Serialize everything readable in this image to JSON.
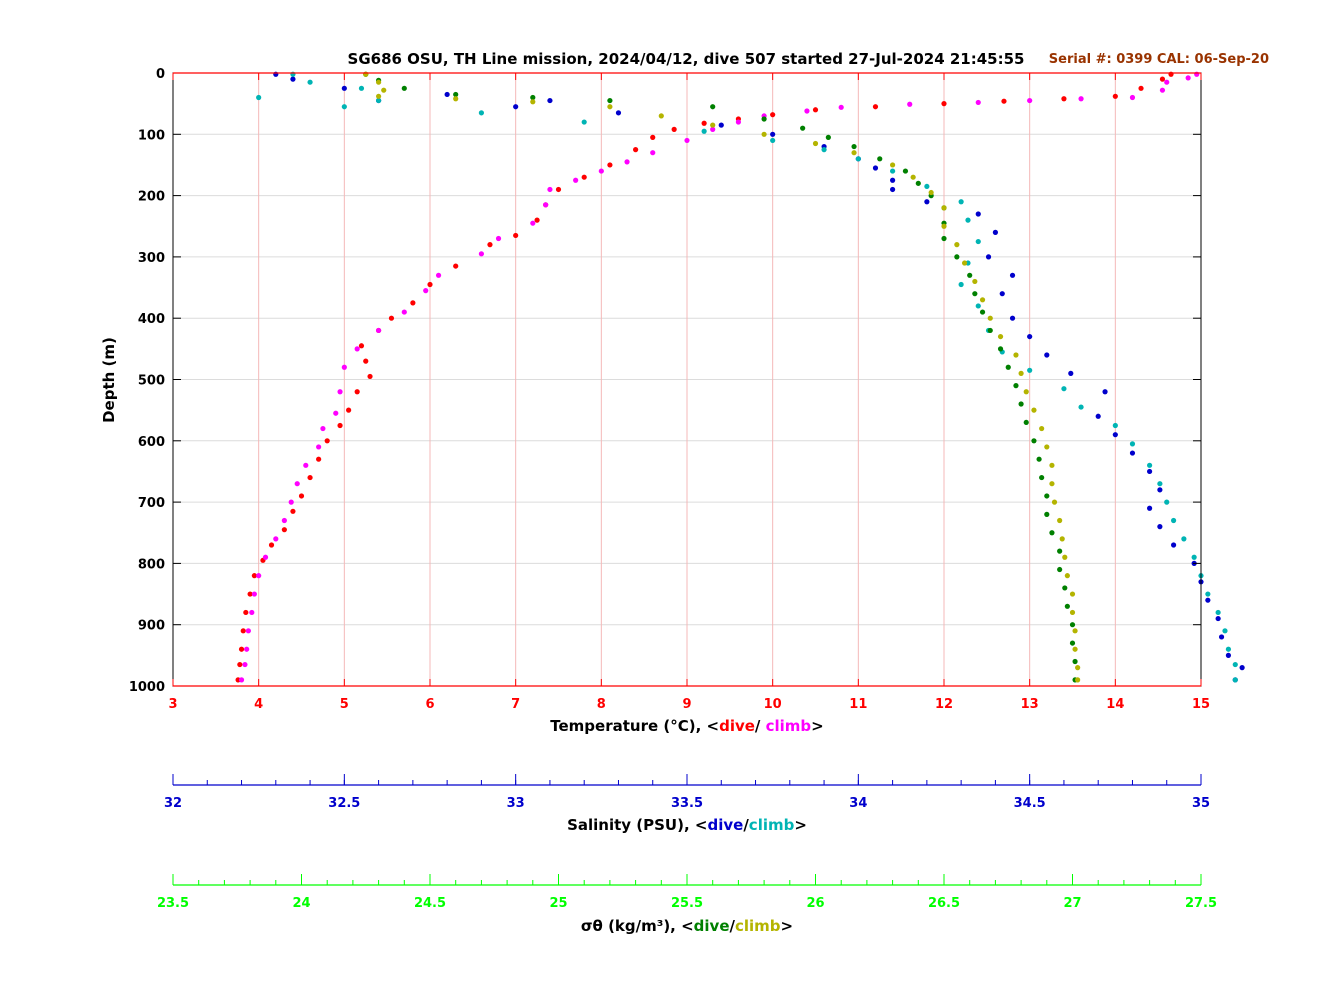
{
  "chart_data": {
    "type": "scatter",
    "title": "SG686 OSU, TH Line mission, 2024/04/12, dive 507 started 27-Jul-2024 21:45:55",
    "annotation": "Serial #: 0399  CAL: 06-Sep-20",
    "y_axis": {
      "label": "Depth (m)",
      "range": [
        0,
        1000
      ],
      "reversed": true,
      "ticks": [
        0,
        100,
        200,
        300,
        400,
        500,
        600,
        700,
        800,
        900,
        1000
      ]
    },
    "x_axes": [
      {
        "id": "temperature",
        "label_prefix": "Temperature (°C), <",
        "label_dive": "dive",
        "label_sep": "/ ",
        "label_climb": "climb",
        "label_suffix": ">",
        "range": [
          3,
          15
        ],
        "ticks": [
          3,
          4,
          5,
          6,
          7,
          8,
          9,
          10,
          11,
          12,
          13,
          14,
          15
        ],
        "color": "#ff0000",
        "dive_color": "#ff0000",
        "climb_color": "#ff00ff"
      },
      {
        "id": "salinity",
        "label_prefix": "Salinity (PSU), <",
        "label_dive": "dive",
        "label_sep": "/",
        "label_climb": "climb",
        "label_suffix": ">",
        "range": [
          32,
          35
        ],
        "ticks": [
          32,
          32.5,
          33,
          33.5,
          34,
          34.5,
          35
        ],
        "color": "#0000cc",
        "dive_color": "#0000cc",
        "climb_color": "#00b4b4"
      },
      {
        "id": "density",
        "label_prefix": "σθ (kg/m³), <",
        "label_dive": "dive",
        "label_sep": "/",
        "label_climb": "climb",
        "label_suffix": ">",
        "range": [
          23.5,
          27.5
        ],
        "ticks": [
          23.5,
          24,
          24.5,
          25,
          25.5,
          26,
          26.5,
          27,
          27.5
        ],
        "color": "#00ff00",
        "dive_color": "#008000",
        "climb_color": "#b4b400"
      }
    ],
    "grid": true,
    "series": [
      {
        "axis": "temperature",
        "name": "dive",
        "color": "#ff0000",
        "points": [
          [
            14.65,
            2
          ],
          [
            14.55,
            10
          ],
          [
            14.3,
            25
          ],
          [
            14.0,
            38
          ],
          [
            13.4,
            42
          ],
          [
            12.7,
            46
          ],
          [
            12.0,
            50
          ],
          [
            11.2,
            55
          ],
          [
            10.5,
            60
          ],
          [
            10.0,
            68
          ],
          [
            9.6,
            75
          ],
          [
            9.2,
            82
          ],
          [
            8.85,
            92
          ],
          [
            8.6,
            105
          ],
          [
            8.4,
            125
          ],
          [
            8.1,
            150
          ],
          [
            7.8,
            170
          ],
          [
            7.5,
            190
          ],
          [
            7.35,
            215
          ],
          [
            7.25,
            240
          ],
          [
            7.0,
            265
          ],
          [
            6.7,
            280
          ],
          [
            6.3,
            315
          ],
          [
            6.0,
            345
          ],
          [
            5.8,
            375
          ],
          [
            5.55,
            400
          ],
          [
            5.4,
            420
          ],
          [
            5.2,
            445
          ],
          [
            5.25,
            470
          ],
          [
            5.3,
            495
          ],
          [
            5.15,
            520
          ],
          [
            5.05,
            550
          ],
          [
            4.95,
            575
          ],
          [
            4.8,
            600
          ],
          [
            4.7,
            630
          ],
          [
            4.6,
            660
          ],
          [
            4.5,
            690
          ],
          [
            4.4,
            715
          ],
          [
            4.3,
            745
          ],
          [
            4.15,
            770
          ],
          [
            4.05,
            795
          ],
          [
            3.95,
            820
          ],
          [
            3.9,
            850
          ],
          [
            3.85,
            880
          ],
          [
            3.82,
            910
          ],
          [
            3.8,
            940
          ],
          [
            3.78,
            965
          ],
          [
            3.76,
            990
          ]
        ]
      },
      {
        "axis": "temperature",
        "name": "climb",
        "color": "#ff00ff",
        "points": [
          [
            14.95,
            2
          ],
          [
            14.85,
            8
          ],
          [
            14.6,
            15
          ],
          [
            14.55,
            28
          ],
          [
            14.2,
            40
          ],
          [
            13.6,
            42
          ],
          [
            13.0,
            45
          ],
          [
            12.4,
            48
          ],
          [
            11.6,
            51
          ],
          [
            10.8,
            56
          ],
          [
            10.4,
            62
          ],
          [
            9.9,
            70
          ],
          [
            9.6,
            80
          ],
          [
            9.3,
            92
          ],
          [
            9.0,
            110
          ],
          [
            8.6,
            130
          ],
          [
            8.3,
            145
          ],
          [
            8.0,
            160
          ],
          [
            7.7,
            175
          ],
          [
            7.4,
            190
          ],
          [
            7.35,
            215
          ],
          [
            7.2,
            245
          ],
          [
            6.8,
            270
          ],
          [
            6.6,
            295
          ],
          [
            6.1,
            330
          ],
          [
            5.95,
            355
          ],
          [
            5.7,
            390
          ],
          [
            5.4,
            420
          ],
          [
            5.15,
            450
          ],
          [
            5.0,
            480
          ],
          [
            4.95,
            520
          ],
          [
            4.9,
            555
          ],
          [
            4.75,
            580
          ],
          [
            4.7,
            610
          ],
          [
            4.55,
            640
          ],
          [
            4.45,
            670
          ],
          [
            4.38,
            700
          ],
          [
            4.3,
            730
          ],
          [
            4.2,
            760
          ],
          [
            4.08,
            790
          ],
          [
            4.0,
            820
          ],
          [
            3.95,
            850
          ],
          [
            3.92,
            880
          ],
          [
            3.88,
            910
          ],
          [
            3.86,
            940
          ],
          [
            3.84,
            965
          ],
          [
            3.8,
            990
          ]
        ]
      },
      {
        "axis": "salinity",
        "name": "dive",
        "color": "#0000cc",
        "points": [
          [
            32.3,
            2
          ],
          [
            32.35,
            10
          ],
          [
            32.5,
            25
          ],
          [
            32.8,
            35
          ],
          [
            33.1,
            45
          ],
          [
            32.6,
            45
          ],
          [
            33.0,
            55
          ],
          [
            33.3,
            65
          ],
          [
            33.6,
            85
          ],
          [
            33.75,
            100
          ],
          [
            33.9,
            120
          ],
          [
            34.0,
            140
          ],
          [
            34.05,
            155
          ],
          [
            34.1,
            175
          ],
          [
            34.1,
            190
          ],
          [
            34.2,
            210
          ],
          [
            34.35,
            230
          ],
          [
            34.4,
            260
          ],
          [
            34.38,
            300
          ],
          [
            34.45,
            330
          ],
          [
            34.42,
            360
          ],
          [
            34.45,
            400
          ],
          [
            34.5,
            430
          ],
          [
            34.55,
            460
          ],
          [
            34.62,
            490
          ],
          [
            34.72,
            520
          ],
          [
            34.7,
            560
          ],
          [
            34.75,
            590
          ],
          [
            34.8,
            620
          ],
          [
            34.85,
            650
          ],
          [
            34.88,
            680
          ],
          [
            34.85,
            710
          ],
          [
            34.88,
            740
          ],
          [
            34.92,
            770
          ],
          [
            34.98,
            800
          ],
          [
            35.0,
            830
          ],
          [
            35.02,
            860
          ],
          [
            35.05,
            890
          ],
          [
            35.06,
            920
          ],
          [
            35.08,
            950
          ],
          [
            35.12,
            970
          ],
          [
            35.1,
            990
          ]
        ]
      },
      {
        "axis": "salinity",
        "name": "climb",
        "color": "#00b4b4",
        "points": [
          [
            32.35,
            2
          ],
          [
            32.4,
            15
          ],
          [
            32.55,
            25
          ],
          [
            32.25,
            40
          ],
          [
            32.6,
            45
          ],
          [
            32.5,
            55
          ],
          [
            32.9,
            65
          ],
          [
            33.2,
            80
          ],
          [
            33.55,
            95
          ],
          [
            33.75,
            110
          ],
          [
            33.9,
            125
          ],
          [
            34.0,
            140
          ],
          [
            34.1,
            160
          ],
          [
            34.2,
            185
          ],
          [
            34.3,
            210
          ],
          [
            34.32,
            240
          ],
          [
            34.35,
            275
          ],
          [
            34.32,
            310
          ],
          [
            34.3,
            345
          ],
          [
            34.35,
            380
          ],
          [
            34.38,
            420
          ],
          [
            34.42,
            455
          ],
          [
            34.5,
            485
          ],
          [
            34.6,
            515
          ],
          [
            34.65,
            545
          ],
          [
            34.75,
            575
          ],
          [
            34.8,
            605
          ],
          [
            34.85,
            640
          ],
          [
            34.88,
            670
          ],
          [
            34.9,
            700
          ],
          [
            34.92,
            730
          ],
          [
            34.95,
            760
          ],
          [
            34.98,
            790
          ],
          [
            35.0,
            820
          ],
          [
            35.02,
            850
          ],
          [
            35.05,
            880
          ],
          [
            35.07,
            910
          ],
          [
            35.08,
            940
          ],
          [
            35.1,
            965
          ],
          [
            35.1,
            990
          ]
        ]
      },
      {
        "axis": "density",
        "name": "dive",
        "color": "#008000",
        "points": [
          [
            24.25,
            2
          ],
          [
            24.3,
            12
          ],
          [
            24.4,
            25
          ],
          [
            24.6,
            35
          ],
          [
            24.9,
            40
          ],
          [
            25.2,
            45
          ],
          [
            25.6,
            55
          ],
          [
            25.8,
            75
          ],
          [
            25.95,
            90
          ],
          [
            26.05,
            105
          ],
          [
            26.15,
            120
          ],
          [
            26.25,
            140
          ],
          [
            26.35,
            160
          ],
          [
            26.4,
            180
          ],
          [
            26.45,
            200
          ],
          [
            26.5,
            220
          ],
          [
            26.5,
            245
          ],
          [
            26.5,
            270
          ],
          [
            26.55,
            300
          ],
          [
            26.6,
            330
          ],
          [
            26.62,
            360
          ],
          [
            26.65,
            390
          ],
          [
            26.68,
            420
          ],
          [
            26.72,
            450
          ],
          [
            26.75,
            480
          ],
          [
            26.78,
            510
          ],
          [
            26.8,
            540
          ],
          [
            26.82,
            570
          ],
          [
            26.85,
            600
          ],
          [
            26.87,
            630
          ],
          [
            26.88,
            660
          ],
          [
            26.9,
            690
          ],
          [
            26.9,
            720
          ],
          [
            26.92,
            750
          ],
          [
            26.95,
            780
          ],
          [
            26.95,
            810
          ],
          [
            26.97,
            840
          ],
          [
            26.98,
            870
          ],
          [
            27.0,
            900
          ],
          [
            27.0,
            930
          ],
          [
            27.01,
            960
          ],
          [
            27.01,
            990
          ]
        ]
      },
      {
        "axis": "density",
        "name": "climb",
        "color": "#b4b400",
        "points": [
          [
            24.25,
            2
          ],
          [
            24.3,
            15
          ],
          [
            24.32,
            28
          ],
          [
            24.3,
            38
          ],
          [
            24.6,
            42
          ],
          [
            24.9,
            47
          ],
          [
            25.2,
            55
          ],
          [
            25.4,
            70
          ],
          [
            25.6,
            85
          ],
          [
            25.8,
            100
          ],
          [
            26.0,
            115
          ],
          [
            26.15,
            130
          ],
          [
            26.3,
            150
          ],
          [
            26.38,
            170
          ],
          [
            26.45,
            195
          ],
          [
            26.5,
            220
          ],
          [
            26.5,
            250
          ],
          [
            26.55,
            280
          ],
          [
            26.58,
            310
          ],
          [
            26.62,
            340
          ],
          [
            26.65,
            370
          ],
          [
            26.68,
            400
          ],
          [
            26.72,
            430
          ],
          [
            26.78,
            460
          ],
          [
            26.8,
            490
          ],
          [
            26.82,
            520
          ],
          [
            26.85,
            550
          ],
          [
            26.88,
            580
          ],
          [
            26.9,
            610
          ],
          [
            26.92,
            640
          ],
          [
            26.92,
            670
          ],
          [
            26.93,
            700
          ],
          [
            26.95,
            730
          ],
          [
            26.96,
            760
          ],
          [
            26.97,
            790
          ],
          [
            26.98,
            820
          ],
          [
            27.0,
            850
          ],
          [
            27.0,
            880
          ],
          [
            27.01,
            910
          ],
          [
            27.01,
            940
          ],
          [
            27.02,
            970
          ],
          [
            27.02,
            990
          ]
        ]
      }
    ]
  }
}
